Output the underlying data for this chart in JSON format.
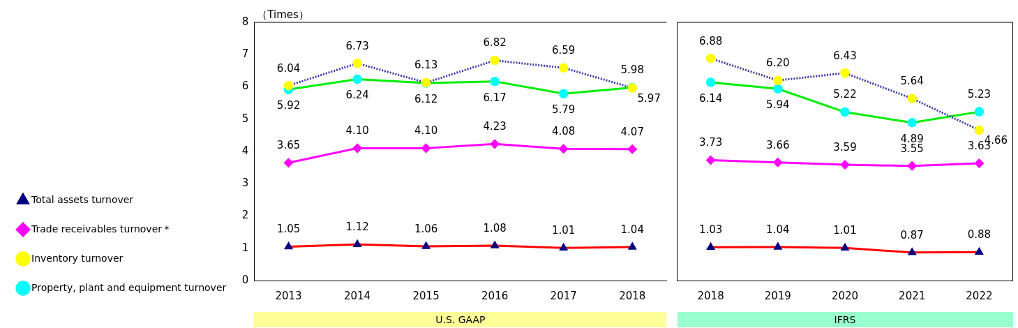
{
  "chart_data": [
    {
      "type": "line",
      "ylabel": "（Times）",
      "xlabel": "U.S. GAAP",
      "categories": [
        "2013",
        "2014",
        "2015",
        "2016",
        "2017",
        "2018"
      ],
      "ylim": [
        0,
        8
      ],
      "yticks": [
        0,
        1,
        2,
        3,
        4,
        5,
        6,
        7,
        8
      ],
      "legend": "left",
      "grid": false,
      "series": [
        {
          "name": "Total assets turnover",
          "color": "#ff0000",
          "marker": "triangle",
          "colors": [
            "#000080",
            "#000080",
            "#000080",
            "#000080",
            "#000080",
            "#000080"
          ],
          "values": [
            1.05,
            1.12,
            1.06,
            1.08,
            1.01,
            1.04
          ],
          "value_labels": [
            "1.05",
            "1.12",
            "1.06",
            "1.08",
            "1.01",
            "1.04"
          ]
        },
        {
          "name": "Trade receivables turnover＊",
          "color": "#ff00ff",
          "marker": "diamond",
          "colors": [
            "#ff00ff",
            "#ff00ff",
            "#ff00ff",
            "#ff00ff",
            "#ff00ff",
            "#ff00ff"
          ],
          "values": [
            3.65,
            4.1,
            4.1,
            4.23,
            4.08,
            4.07
          ],
          "value_labels": [
            "3.65",
            "4.10",
            "4.10",
            "4.23",
            "4.08",
            "4.07"
          ]
        },
        {
          "name": "Inventory turnover",
          "color": "#3838a0",
          "line_style": "dotted",
          "marker": "circle",
          "colors": [
            "#ffff00",
            "#ffff00",
            "#ffff00",
            "#ffff00",
            "#ffff00",
            "#ffff00"
          ],
          "values": [
            6.04,
            6.73,
            6.13,
            6.82,
            6.59,
            5.97
          ],
          "value_labels": [
            "6.04",
            "6.73",
            "6.13",
            "6.82",
            "6.59",
            "5.97"
          ]
        },
        {
          "name": "Property, plant and equipment turnover",
          "color": "#00ee00",
          "marker": "circle",
          "colors": [
            "#00ffff",
            "#00ffff",
            "#00ffff",
            "#00ffff",
            "#00ffff",
            "#00ffff"
          ],
          "values": [
            5.92,
            6.24,
            6.12,
            6.17,
            5.79,
            5.98
          ],
          "value_labels": [
            "5.92",
            "6.24",
            "6.12",
            "6.17",
            "5.79",
            "5.98"
          ]
        }
      ]
    },
    {
      "type": "line",
      "xlabel": "IFRS",
      "categories": [
        "2018",
        "2019",
        "2020",
        "2021",
        "2022"
      ],
      "ylim": [
        0,
        8
      ],
      "yticks": [
        0,
        1,
        2,
        3,
        4,
        5,
        6,
        7,
        8
      ],
      "tick_labels": "x",
      "grid": false,
      "series": [
        {
          "color": "#ff0000",
          "marker": "triangle",
          "colors": [
            "#000080",
            "#000080",
            "#000080",
            "#000080",
            "#000080"
          ],
          "values": [
            1.03,
            1.04,
            1.01,
            0.87,
            0.88
          ],
          "value_labels": [
            "1.03",
            "1.04",
            "1.01",
            "0.87",
            "0.88"
          ]
        },
        {
          "color": "#ff00ff",
          "marker": "diamond",
          "colors": [
            "#ff00ff",
            "#ff00ff",
            "#ff00ff",
            "#ff00ff",
            "#ff00ff"
          ],
          "values": [
            3.73,
            3.66,
            3.59,
            3.55,
            3.63
          ],
          "value_labels": [
            "3.73",
            "3.66",
            "3.59",
            "3.55",
            "3.63"
          ]
        },
        {
          "color": "#3838a0",
          "line_style": "dotted",
          "marker": "circle",
          "colors": [
            "#ffff00",
            "#ffff00",
            "#ffff00",
            "#ffff00",
            "#ffff00"
          ],
          "values": [
            6.88,
            6.2,
            6.43,
            5.64,
            4.66
          ],
          "value_labels": [
            "6.88",
            "6.20",
            "6.43",
            "5.64",
            "4.66"
          ]
        },
        {
          "color": "#00ee00",
          "marker": "circle",
          "colors": [
            "#00ffff",
            "#00ffff",
            "#00ffff",
            "#00ffff",
            "#00ffff"
          ],
          "values": [
            6.14,
            5.94,
            5.22,
            4.89,
            5.23
          ],
          "value_labels": [
            "6.14",
            "5.94",
            "5.22",
            "4.89",
            "5.23"
          ]
        }
      ]
    }
  ]
}
